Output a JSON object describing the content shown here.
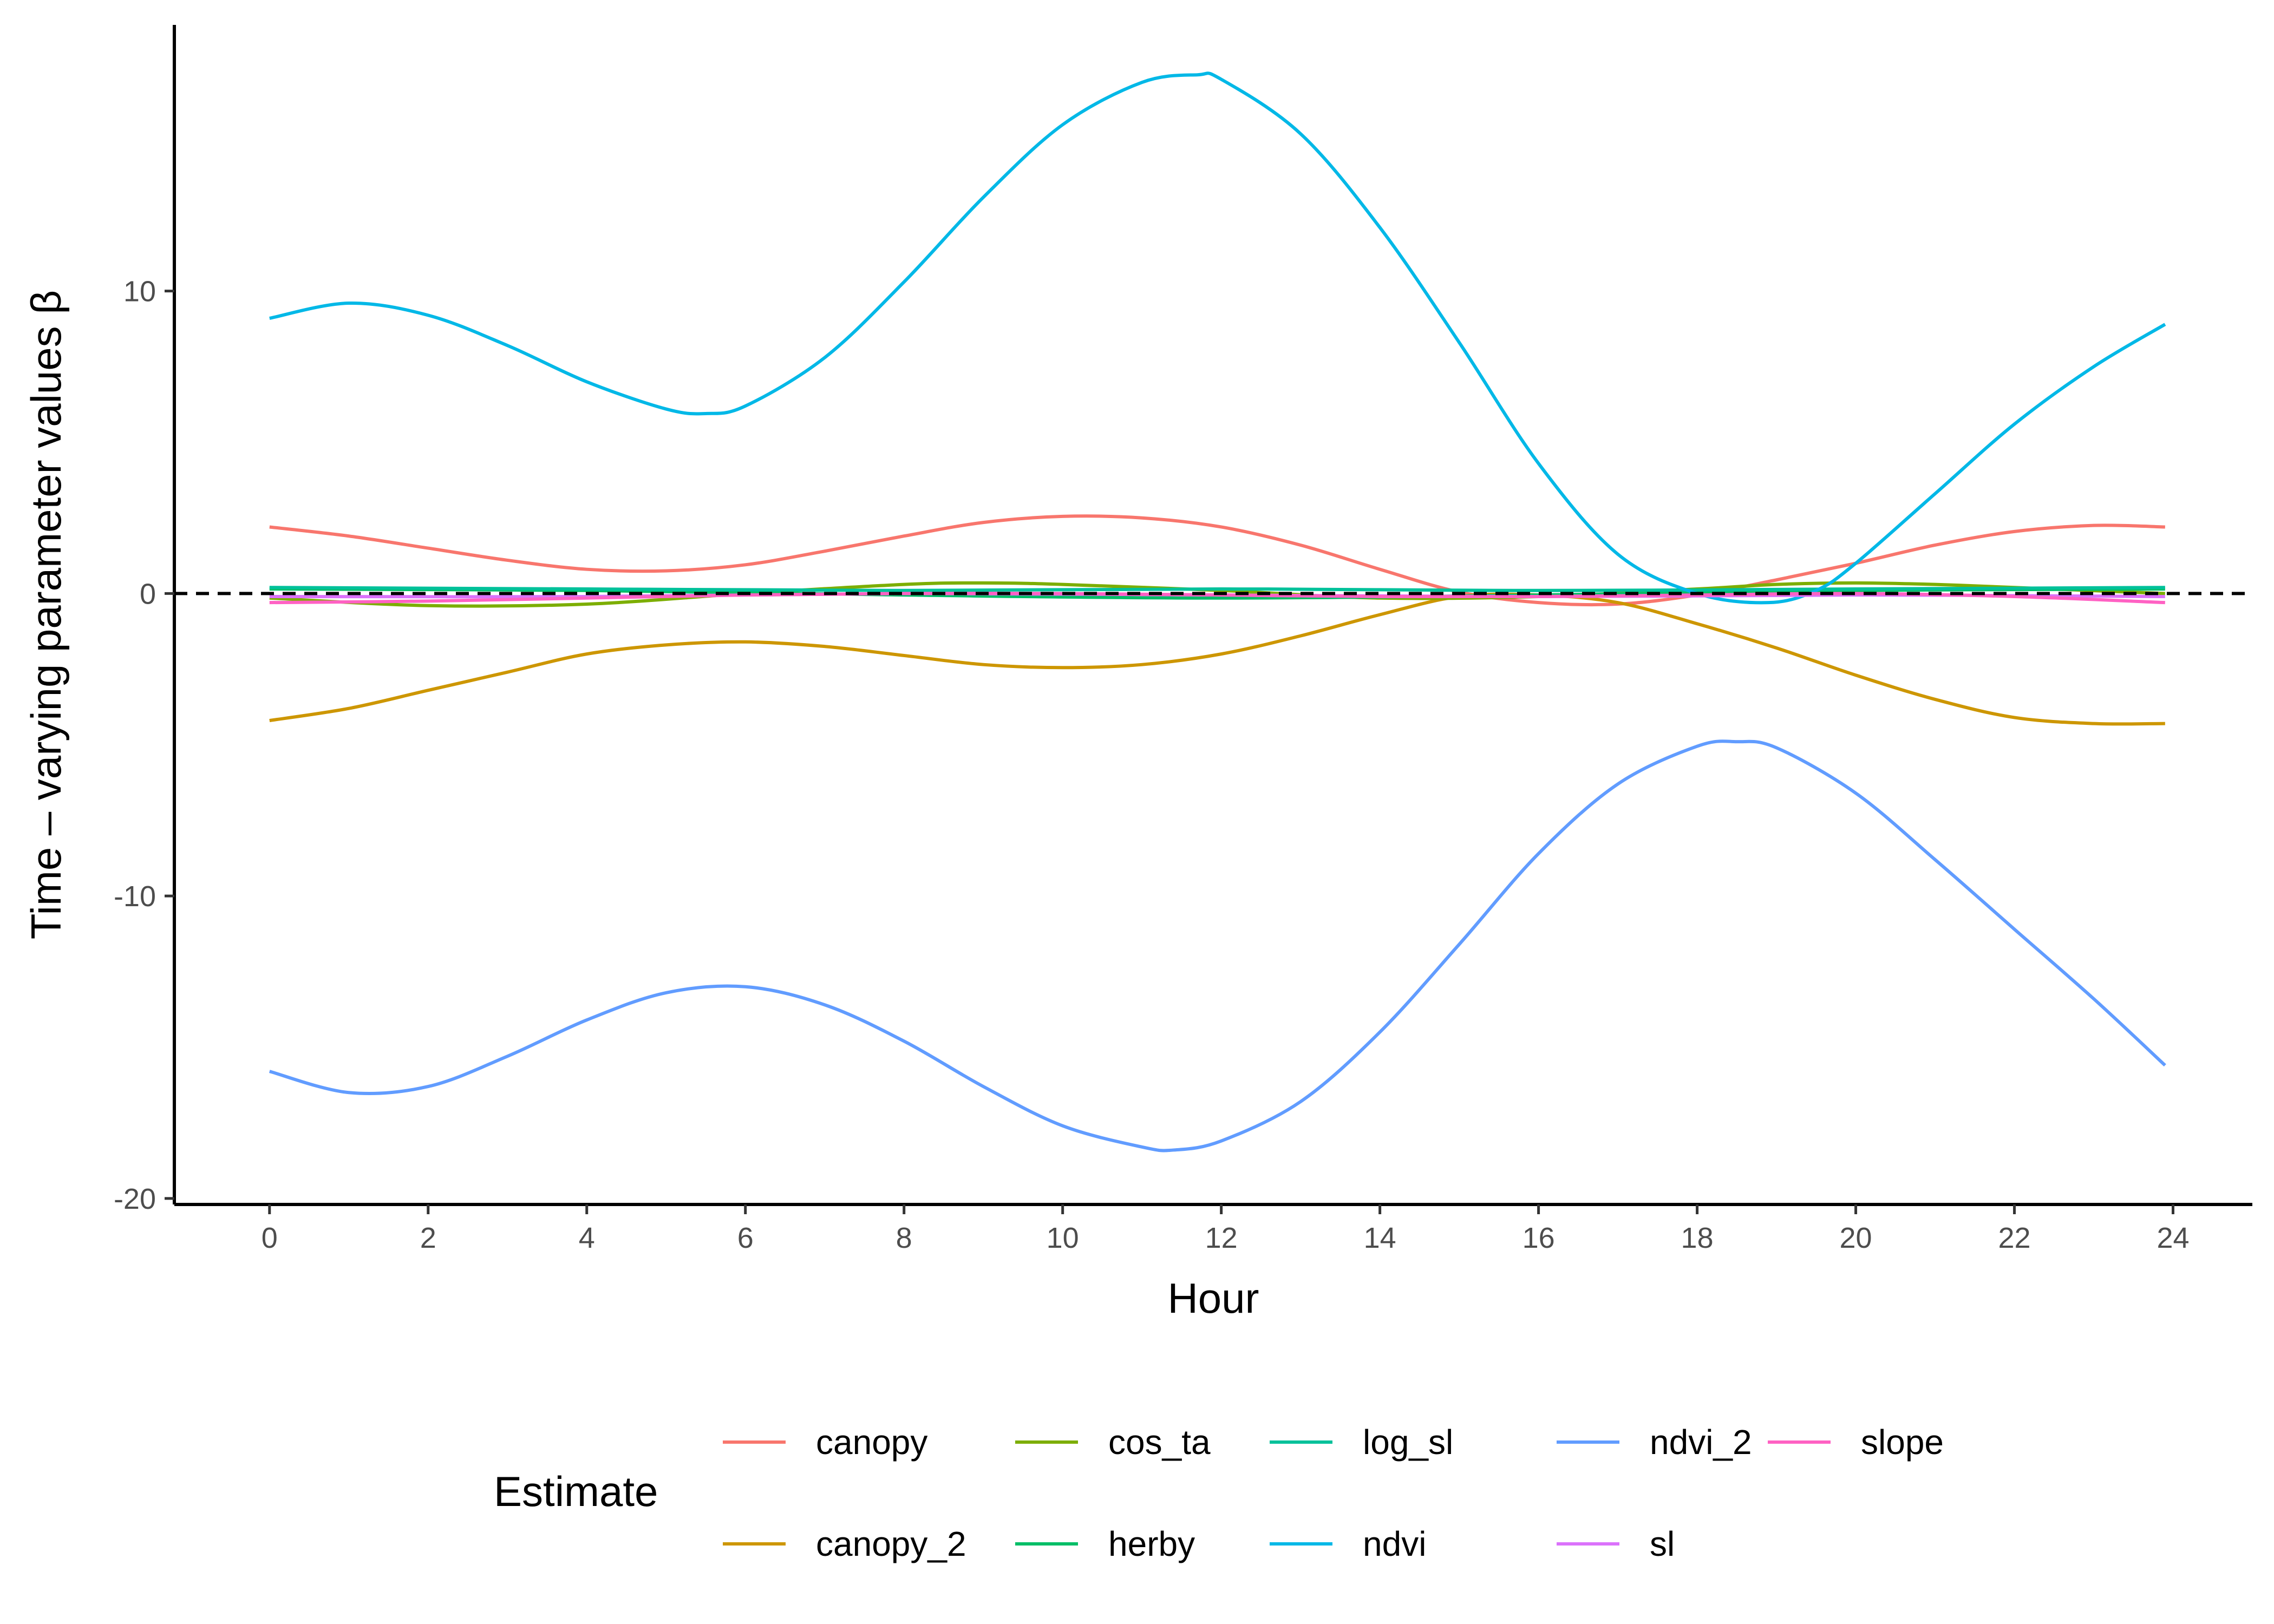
{
  "chart_data": {
    "type": "line",
    "title": "",
    "xlabel": "Hour",
    "ylabel": "Time – varying parameter values β",
    "xlim": [
      -1.2,
      25.0
    ],
    "ylim": [
      -20.2,
      18.8
    ],
    "x_ticks": [
      0,
      2,
      4,
      6,
      8,
      10,
      12,
      14,
      16,
      18,
      20,
      22,
      24
    ],
    "y_ticks": [
      -20,
      -10,
      0,
      10
    ],
    "reference_line": {
      "y": 0,
      "style": "dashed",
      "color": "#000000"
    },
    "grid": false,
    "legend": {
      "title": "Estimate",
      "position": "bottom"
    },
    "series": [
      {
        "name": "canopy",
        "color": "#F8766D",
        "x": [
          0,
          1,
          2,
          3,
          4,
          5,
          6,
          7,
          8,
          9,
          10,
          11,
          12,
          13,
          14,
          15,
          16,
          17,
          18,
          19,
          20,
          21,
          22,
          23,
          23.9
        ],
        "y": [
          2.2,
          1.9,
          1.5,
          1.1,
          0.8,
          0.75,
          0.95,
          1.4,
          1.9,
          2.35,
          2.55,
          2.5,
          2.2,
          1.6,
          0.8,
          0.05,
          -0.3,
          -0.35,
          -0.05,
          0.45,
          1.0,
          1.6,
          2.05,
          2.25,
          2.2
        ]
      },
      {
        "name": "canopy_2",
        "color": "#CD9600",
        "x": [
          0,
          1,
          2,
          3,
          4,
          5,
          6,
          7,
          8,
          9,
          10,
          11,
          12,
          13,
          14,
          15,
          16,
          17,
          18,
          19,
          20,
          21,
          22,
          23,
          23.9
        ],
        "y": [
          -4.2,
          -3.8,
          -3.2,
          -2.6,
          -2.0,
          -1.7,
          -1.6,
          -1.75,
          -2.05,
          -2.35,
          -2.45,
          -2.35,
          -2.0,
          -1.4,
          -0.7,
          -0.1,
          -0.05,
          -0.3,
          -1.0,
          -1.8,
          -2.7,
          -3.5,
          -4.1,
          -4.3,
          -4.3
        ]
      },
      {
        "name": "cos_ta",
        "color": "#7CAE00",
        "x": [
          0,
          2,
          4,
          6,
          8,
          9,
          10,
          12,
          14,
          16,
          18,
          19,
          20,
          21,
          22,
          23.9
        ],
        "y": [
          -0.15,
          -0.4,
          -0.35,
          0.0,
          0.3,
          0.35,
          0.3,
          0.1,
          -0.15,
          -0.1,
          0.15,
          0.3,
          0.35,
          0.3,
          0.2,
          0.0
        ]
      },
      {
        "name": "herby",
        "color": "#00BE67",
        "x": [
          0,
          4,
          8,
          12,
          16,
          20,
          23.9
        ],
        "y": [
          0.15,
          0.1,
          -0.05,
          -0.15,
          -0.05,
          0.1,
          0.15
        ]
      },
      {
        "name": "log_sl",
        "color": "#00C19A",
        "x": [
          0,
          4,
          8,
          12,
          16,
          20,
          23.9
        ],
        "y": [
          0.2,
          0.15,
          0.1,
          0.15,
          0.1,
          0.15,
          0.2
        ]
      },
      {
        "name": "ndvi",
        "color": "#00B8E7",
        "x": [
          0,
          1,
          2,
          3,
          4,
          5,
          5.5,
          6,
          7,
          8,
          9,
          10,
          11,
          11.7,
          12,
          13,
          14,
          15,
          16,
          17,
          18,
          18.9,
          19.5,
          20,
          21,
          22,
          23,
          23.9
        ],
        "y": [
          9.1,
          9.6,
          9.2,
          8.2,
          7.0,
          6.1,
          5.95,
          6.2,
          7.8,
          10.3,
          13.1,
          15.5,
          16.9,
          17.15,
          17.0,
          15.2,
          12.1,
          8.3,
          4.3,
          1.3,
          0.0,
          -0.3,
          0.1,
          1.0,
          3.3,
          5.6,
          7.5,
          8.9
        ]
      },
      {
        "name": "ndvi_2",
        "color": "#619CFF",
        "x": [
          0,
          1,
          2,
          3,
          4,
          5,
          6,
          7,
          8,
          9,
          10,
          11,
          11.4,
          12,
          13,
          14,
          15,
          16,
          17,
          18,
          18.5,
          19,
          20,
          21,
          22,
          23,
          23.9
        ],
        "y": [
          -15.8,
          -16.5,
          -16.3,
          -15.3,
          -14.1,
          -13.2,
          -13.0,
          -13.6,
          -14.8,
          -16.3,
          -17.6,
          -18.3,
          -18.4,
          -18.1,
          -16.8,
          -14.5,
          -11.6,
          -8.6,
          -6.3,
          -5.05,
          -4.9,
          -5.1,
          -6.6,
          -8.8,
          -11.1,
          -13.4,
          -15.6
        ]
      },
      {
        "name": "sl",
        "color": "#DB72FB",
        "x": [
          0,
          4,
          8,
          12,
          16,
          20,
          23.9
        ],
        "y": [
          -0.1,
          -0.1,
          0.0,
          -0.05,
          -0.1,
          -0.05,
          -0.1
        ]
      },
      {
        "name": "slope",
        "color": "#FF61C3",
        "x": [
          0,
          2,
          4,
          6,
          8,
          10,
          12,
          14,
          16,
          18,
          20,
          22,
          23.9
        ],
        "y": [
          -0.3,
          -0.25,
          -0.15,
          -0.05,
          0.0,
          0.0,
          -0.05,
          -0.1,
          -0.1,
          -0.05,
          0.0,
          -0.1,
          -0.3
        ]
      }
    ]
  }
}
